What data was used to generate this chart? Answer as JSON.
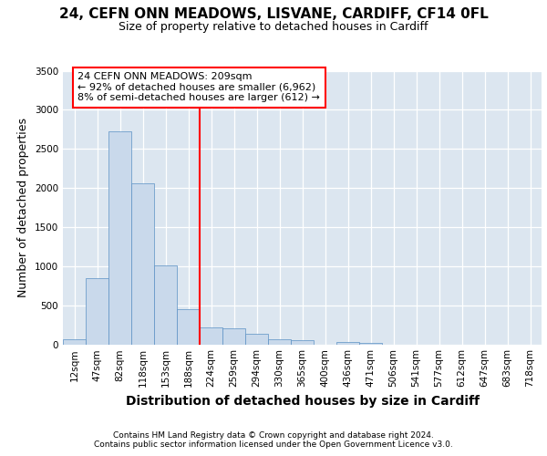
{
  "title1": "24, CEFN ONN MEADOWS, LISVANE, CARDIFF, CF14 0FL",
  "title2": "Size of property relative to detached houses in Cardiff",
  "xlabel": "Distribution of detached houses by size in Cardiff",
  "ylabel": "Number of detached properties",
  "categories": [
    "12sqm",
    "47sqm",
    "82sqm",
    "118sqm",
    "153sqm",
    "188sqm",
    "224sqm",
    "259sqm",
    "294sqm",
    "330sqm",
    "365sqm",
    "400sqm",
    "436sqm",
    "471sqm",
    "506sqm",
    "541sqm",
    "577sqm",
    "612sqm",
    "647sqm",
    "683sqm",
    "718sqm"
  ],
  "values": [
    60,
    850,
    2730,
    2060,
    1010,
    455,
    220,
    200,
    140,
    60,
    50,
    0,
    25,
    20,
    0,
    0,
    0,
    0,
    0,
    0,
    0
  ],
  "bar_color": "#c9d9eb",
  "bar_edge_color": "#5a90c4",
  "vline_index": 5.5,
  "vline_color": "red",
  "annotation_line1": "24 CEFN ONN MEADOWS: 209sqm",
  "annotation_line2": "← 92% of detached houses are smaller (6,962)",
  "annotation_line3": "8% of semi-detached houses are larger (612) →",
  "annotation_box_facecolor": "white",
  "annotation_box_edgecolor": "red",
  "ylim": [
    0,
    3500
  ],
  "yticks": [
    0,
    500,
    1000,
    1500,
    2000,
    2500,
    3000,
    3500
  ],
  "bg_color": "#dce6f0",
  "footer1": "Contains HM Land Registry data © Crown copyright and database right 2024.",
  "footer2": "Contains public sector information licensed under the Open Government Licence v3.0.",
  "title1_fontsize": 11,
  "title2_fontsize": 9,
  "xlabel_fontsize": 10,
  "ylabel_fontsize": 9,
  "tick_fontsize": 7.5,
  "annotation_fontsize": 8,
  "footer_fontsize": 6.5
}
